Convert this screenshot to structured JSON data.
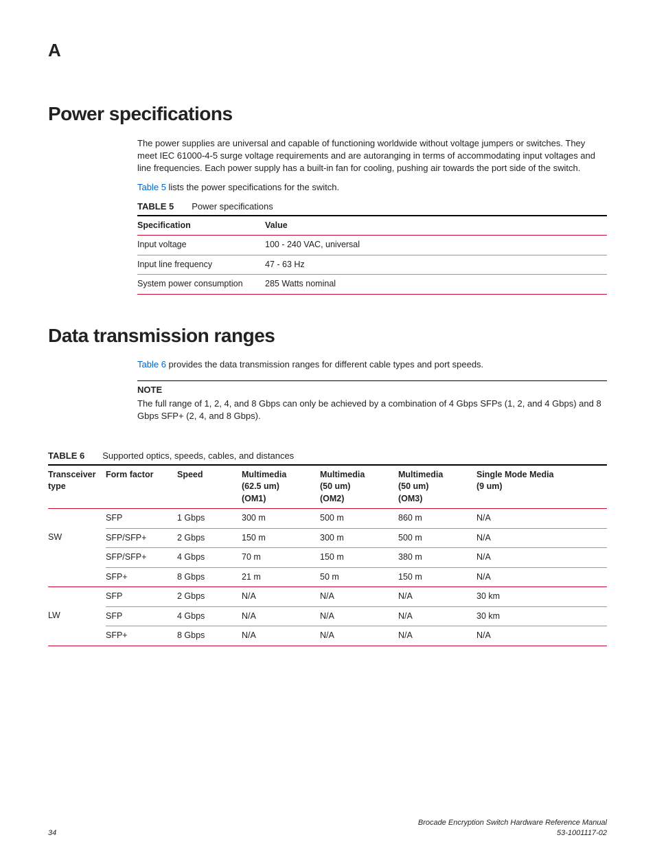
{
  "appendix": "A",
  "section1": {
    "title": "Power specifications",
    "para1": "The power supplies are universal and capable of functioning worldwide without voltage jumpers or switches. They meet IEC 61000-4-5 surge voltage requirements and are autoranging in terms of accommodating input voltages and line frequencies. Each power supply has a built-in fan for cooling, pushing air towards the port side of the switch.",
    "para2_link": "Table 5",
    "para2_rest": " lists the power specifications for the switch.",
    "table_label": "TABLE 5",
    "table_caption": "Power specifications",
    "columns": [
      "Specification",
      "Value"
    ],
    "rows": [
      [
        "Input voltage",
        "100 - 240 VAC, universal"
      ],
      [
        "Input line frequency",
        "47 - 63 Hz"
      ],
      [
        "System power consumption",
        "285 Watts nominal"
      ]
    ]
  },
  "section2": {
    "title": "Data transmission ranges",
    "para1_link": "Table 6",
    "para1_rest": " provides the data transmission ranges for different cable types and port speeds.",
    "note_label": "NOTE",
    "note_text": "The full range of 1, 2, 4, and 8 Gbps can only be achieved by a combination of 4 Gbps SFPs (1, 2, and 4 Gbps) and 8 Gbps SFP+ (2, 4, and 8 Gbps).",
    "table_label": "TABLE 6",
    "table_caption": "Supported optics, speeds, cables, and distances",
    "columns": [
      "Transceiver type",
      "Form factor",
      "Speed",
      "Multimedia\n(62.5 um)\n(OM1)",
      "Multimedia\n(50 um)\n(OM2)",
      "Multimedia\n(50 um)\n(OM3)",
      "Single Mode Media\n(9 um)"
    ],
    "groups": [
      {
        "type": "SW",
        "rows": [
          [
            "SFP",
            "1 Gbps",
            "300 m",
            "500 m",
            "860 m",
            "N/A"
          ],
          [
            "SFP/SFP+",
            "2 Gbps",
            "150 m",
            "300 m",
            "500 m",
            "N/A"
          ],
          [
            "SFP/SFP+",
            "4 Gbps",
            "70 m",
            "150 m",
            "380 m",
            "N/A"
          ],
          [
            "SFP+",
            "8 Gbps",
            "21 m",
            "50 m",
            "150 m",
            "N/A"
          ]
        ]
      },
      {
        "type": "LW",
        "rows": [
          [
            "SFP",
            "2 Gbps",
            "N/A",
            "N/A",
            "N/A",
            "30 km"
          ],
          [
            "SFP",
            "4 Gbps",
            "N/A",
            "N/A",
            "N/A",
            "30 km"
          ],
          [
            "SFP+",
            "8 Gbps",
            "N/A",
            "N/A",
            "N/A",
            "N/A"
          ]
        ]
      }
    ]
  },
  "footer": {
    "page": "34",
    "doc_title": "Brocade Encryption Switch Hardware Reference Manual",
    "doc_number": "53-1001117-02"
  },
  "colors": {
    "link": "#0066cc",
    "red_rule": "#c8102e"
  }
}
